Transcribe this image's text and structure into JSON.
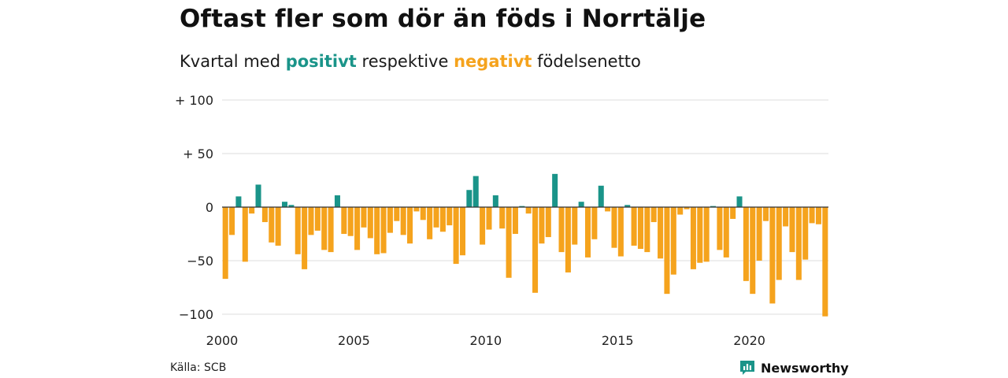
{
  "title": "Oftast fler som dör än föds i Norrtälje",
  "subtitle": {
    "prefix": "Kvartal med",
    "positive_word": "positivt",
    "middle": "respektive",
    "negative_word": "negativt",
    "suffix": "födelsenetto"
  },
  "colors": {
    "positive": "#1a9489",
    "negative": "#f5a31d",
    "gridline": "#dddddd",
    "zeroline": "#333333"
  },
  "source": "Källa: SCB",
  "brand": {
    "name": "Newsworthy",
    "icon": "newsworthy-logo-icon"
  },
  "chart_data": {
    "type": "bar",
    "title": "Oftast fler som dör än föds i Norrtälje",
    "subtitle": "Kvartal med positivt respektive negativt födelsenetto",
    "ylim": [
      -100,
      100
    ],
    "yticks": [
      {
        "value": 100,
        "label": "+ 100"
      },
      {
        "value": 50,
        "label": "+  50"
      },
      {
        "value": 0,
        "label": "0"
      },
      {
        "value": -50,
        "label": "−50"
      },
      {
        "value": -100,
        "label": "−100"
      }
    ],
    "xticks": [
      {
        "value": 2000,
        "label": "2000"
      },
      {
        "value": 2005,
        "label": "2005"
      },
      {
        "value": 2010,
        "label": "2010"
      },
      {
        "value": 2015,
        "label": "2015"
      },
      {
        "value": 2020,
        "label": "2020"
      }
    ],
    "start_year": 2000,
    "quarters_per_year": 4,
    "grid": true,
    "values": [
      -67,
      -26,
      10,
      -51,
      -6,
      21,
      -14,
      -33,
      -36,
      5,
      2,
      -44,
      -58,
      -26,
      -22,
      -40,
      -42,
      11,
      -25,
      -27,
      -40,
      -19,
      -29,
      -44,
      -43,
      -24,
      -13,
      -26,
      -34,
      -4,
      -12,
      -30,
      -19,
      -23,
      -17,
      -53,
      -45,
      16,
      29,
      -35,
      -21,
      11,
      -20,
      -66,
      -25,
      1,
      -6,
      -80,
      -34,
      -28,
      31,
      -42,
      -61,
      -35,
      5,
      -47,
      -30,
      20,
      -4,
      -38,
      -46,
      2,
      -36,
      -39,
      -42,
      -14,
      -48,
      -81,
      -63,
      -7,
      -2,
      -58,
      -52,
      -51,
      1,
      -40,
      -47,
      -11,
      10,
      -69,
      -81,
      -50,
      -13,
      -90,
      -68,
      -18,
      -42,
      -68,
      -49,
      -15,
      -16,
      -102
    ]
  }
}
